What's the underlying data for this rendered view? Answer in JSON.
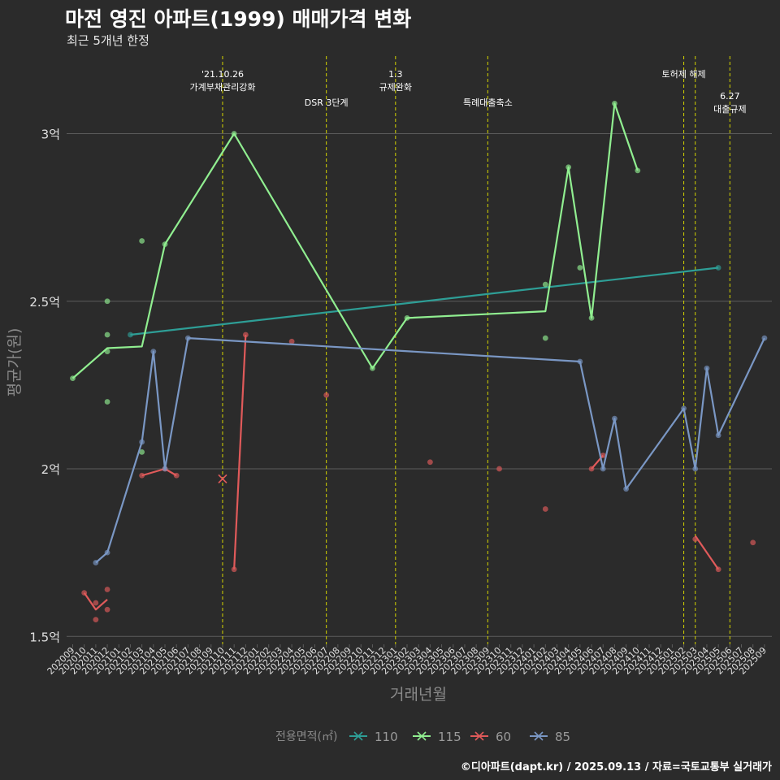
{
  "header": {
    "title": "마전 영진 아파트(1999) 매매가격 변화",
    "subtitle": "최근 5개년 한정"
  },
  "footer": {
    "caption": "©디아파트(dapt.kr) / 2025.09.13 / 자료=국토교통부 실거래가"
  },
  "colors": {
    "110": "#2e9e96",
    "115": "#90ee90",
    "60": "#e05a5a",
    "85": "#7a97c4",
    "event": "#d4d400",
    "grid": "#5c5c5c"
  },
  "chart_data": {
    "type": "line",
    "title": "마전 영진 아파트(1999) 매매가격 변화",
    "xlabel": "거래년월",
    "ylabel": "평균가(원)",
    "ylim": [
      1.47,
      3.3
    ],
    "y_ticks": [
      {
        "value": 1.5,
        "label": "1.5억"
      },
      {
        "value": 2.0,
        "label": "2억"
      },
      {
        "value": 2.5,
        "label": "2.5억"
      },
      {
        "value": 3.0,
        "label": "3억"
      }
    ],
    "months": [
      "202009",
      "202010",
      "202011",
      "202012",
      "202101",
      "202102",
      "202103",
      "202104",
      "202105",
      "202106",
      "202107",
      "202108",
      "202109",
      "202110",
      "202111",
      "202112",
      "202201",
      "202202",
      "202203",
      "202204",
      "202205",
      "202206",
      "202207",
      "202208",
      "202209",
      "202210",
      "202211",
      "202212",
      "202301",
      "202302",
      "202303",
      "202304",
      "202305",
      "202306",
      "202307",
      "202308",
      "202309",
      "202310",
      "202311",
      "202312",
      "202401",
      "202402",
      "202403",
      "202404",
      "202405",
      "202406",
      "202407",
      "202408",
      "202409",
      "202410",
      "202411",
      "202412",
      "202501",
      "202502",
      "202503",
      "202504",
      "202505",
      "202506",
      "202507",
      "202508",
      "202509"
    ],
    "legend": {
      "title": "전용면적(㎡)",
      "position": "bottom",
      "entries": [
        {
          "key": "110",
          "label": "110"
        },
        {
          "key": "115",
          "label": "115"
        },
        {
          "key": "60",
          "label": "60"
        },
        {
          "key": "85",
          "label": "85"
        }
      ]
    },
    "events": [
      {
        "month": "202110",
        "lines": [
          "'21.10.26",
          "가계부채관리강화"
        ],
        "level": 1
      },
      {
        "month": "202207",
        "lines": [
          "DSR 3단계"
        ],
        "level": 2
      },
      {
        "month": "202301",
        "lines": [
          "1.3",
          "규제완화"
        ],
        "level": 1
      },
      {
        "month": "202309",
        "lines": [
          "특례대출축소"
        ],
        "level": 2
      },
      {
        "month": "202502",
        "lines": [
          "토허제 해제"
        ],
        "level": 1
      },
      {
        "month": "202503",
        "lines": [],
        "level": 1
      },
      {
        "month": "202506",
        "lines": [
          "6.27",
          "대출규제"
        ],
        "level": 3
      }
    ],
    "series": [
      {
        "name": "110",
        "line": [
          [
            "202102",
            2.4
          ],
          [
            "202505",
            2.6
          ]
        ],
        "points": [
          [
            "202102",
            2.4
          ],
          [
            "202505",
            2.6
          ]
        ]
      },
      {
        "name": "115",
        "line": [
          [
            "202009",
            2.27
          ],
          [
            "202012",
            2.36
          ],
          [
            "202103",
            2.365
          ],
          [
            "202105",
            2.67
          ],
          [
            "202111",
            3.0
          ],
          [
            "202211",
            2.3
          ],
          [
            "202302",
            2.45
          ],
          [
            "202402",
            2.47
          ],
          [
            "202404",
            2.9
          ],
          [
            "202406",
            2.45
          ],
          [
            "202408",
            3.09
          ],
          [
            "202410",
            2.89
          ]
        ],
        "points": [
          [
            "202009",
            2.27
          ],
          [
            "202012",
            2.5
          ],
          [
            "202012",
            2.4
          ],
          [
            "202012",
            2.35
          ],
          [
            "202012",
            2.2
          ],
          [
            "202103",
            2.68
          ],
          [
            "202103",
            2.05
          ],
          [
            "202402",
            2.55
          ],
          [
            "202402",
            2.39
          ],
          [
            "202405",
            2.6
          ],
          [
            "202406",
            2.45
          ],
          [
            "202404",
            2.9
          ],
          [
            "202408",
            3.09
          ],
          [
            "202410",
            2.89
          ],
          [
            "202211",
            2.3
          ],
          [
            "202302",
            2.45
          ],
          [
            "202105",
            2.67
          ],
          [
            "202111",
            3.0
          ]
        ]
      },
      {
        "name": "60",
        "segments": [
          [
            [
              "202010",
              1.63
            ],
            [
              "202011",
              1.58
            ],
            [
              "202012",
              1.61
            ]
          ],
          [
            [
              "202103",
              1.98
            ],
            [
              "202105",
              2.0
            ],
            [
              "202106",
              1.98
            ]
          ],
          [
            [
              "202111",
              1.7
            ],
            [
              "202112",
              2.4
            ]
          ],
          [
            [
              "202406",
              2.0
            ],
            [
              "202407",
              2.04
            ]
          ],
          [
            [
              "202503",
              1.8
            ],
            [
              "202505",
              1.7
            ]
          ]
        ],
        "points": [
          [
            "202010",
            1.63
          ],
          [
            "202011",
            1.6
          ],
          [
            "202011",
            1.55
          ],
          [
            "202012",
            1.64
          ],
          [
            "202012",
            1.58
          ],
          [
            "202103",
            1.98
          ],
          [
            "202105",
            2.0
          ],
          [
            "202106",
            1.98
          ],
          [
            "202111",
            1.7
          ],
          [
            "202112",
            2.4
          ],
          [
            "202204",
            2.38
          ],
          [
            "202207",
            2.22
          ],
          [
            "202304",
            2.02
          ],
          [
            "202310",
            2.0
          ],
          [
            "202402",
            1.88
          ],
          [
            "202406",
            2.0
          ],
          [
            "202407",
            2.04
          ],
          [
            "202503",
            1.79
          ],
          [
            "202505",
            1.7
          ],
          [
            "202508",
            1.78
          ]
        ],
        "x_marks": [
          [
            "202110",
            1.97
          ]
        ]
      },
      {
        "name": "85",
        "line": [
          [
            "202011",
            1.72
          ],
          [
            "202012",
            1.75
          ],
          [
            "202103",
            2.08
          ],
          [
            "202104",
            2.35
          ],
          [
            "202105",
            2.0
          ],
          [
            "202107",
            2.39
          ],
          [
            "202405",
            2.32
          ],
          [
            "202407",
            2.0
          ],
          [
            "202408",
            2.15
          ],
          [
            "202409",
            1.94
          ],
          [
            "202502",
            2.18
          ],
          [
            "202503",
            2.0
          ],
          [
            "202504",
            2.3
          ],
          [
            "202505",
            2.1
          ],
          [
            "202509",
            2.39
          ]
        ],
        "points": [
          [
            "202011",
            1.72
          ],
          [
            "202012",
            1.75
          ],
          [
            "202103",
            2.08
          ],
          [
            "202104",
            2.35
          ],
          [
            "202105",
            2.0
          ],
          [
            "202107",
            2.39
          ],
          [
            "202405",
            2.32
          ],
          [
            "202407",
            2.0
          ],
          [
            "202408",
            2.15
          ],
          [
            "202409",
            1.94
          ],
          [
            "202502",
            2.18
          ],
          [
            "202503",
            2.0
          ],
          [
            "202504",
            2.3
          ],
          [
            "202505",
            2.1
          ],
          [
            "202509",
            2.39
          ]
        ]
      }
    ]
  }
}
